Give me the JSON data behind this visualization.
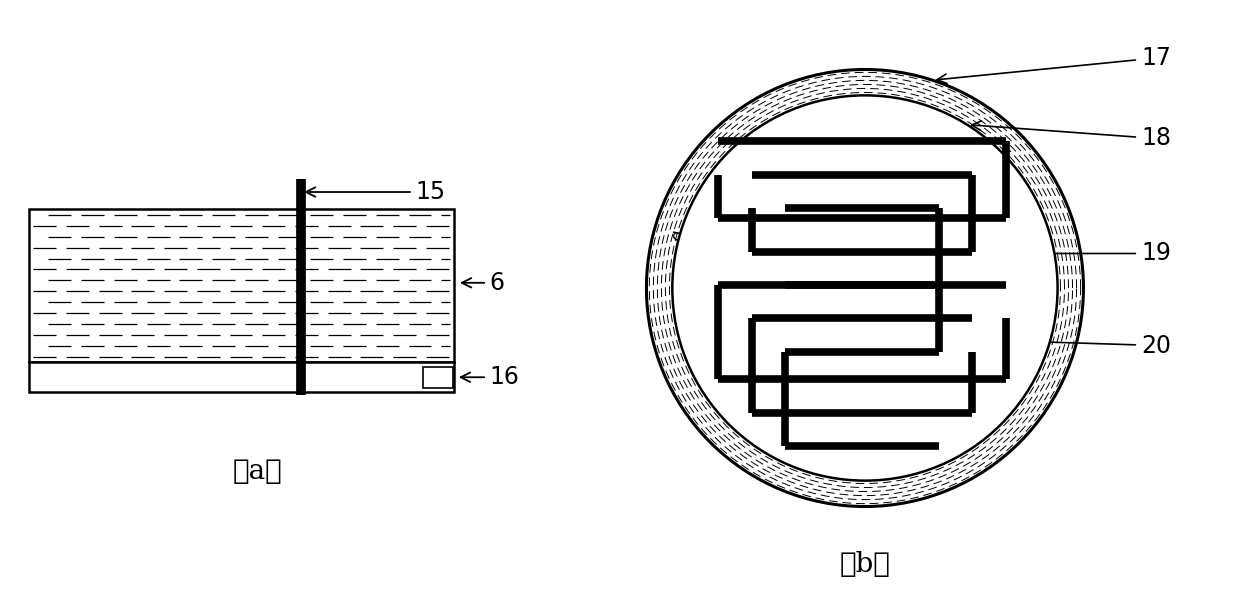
{
  "fig_width": 12.4,
  "fig_height": 5.99,
  "bg_color": "#ffffff",
  "label_a": "（a）",
  "label_b": "（b）"
}
